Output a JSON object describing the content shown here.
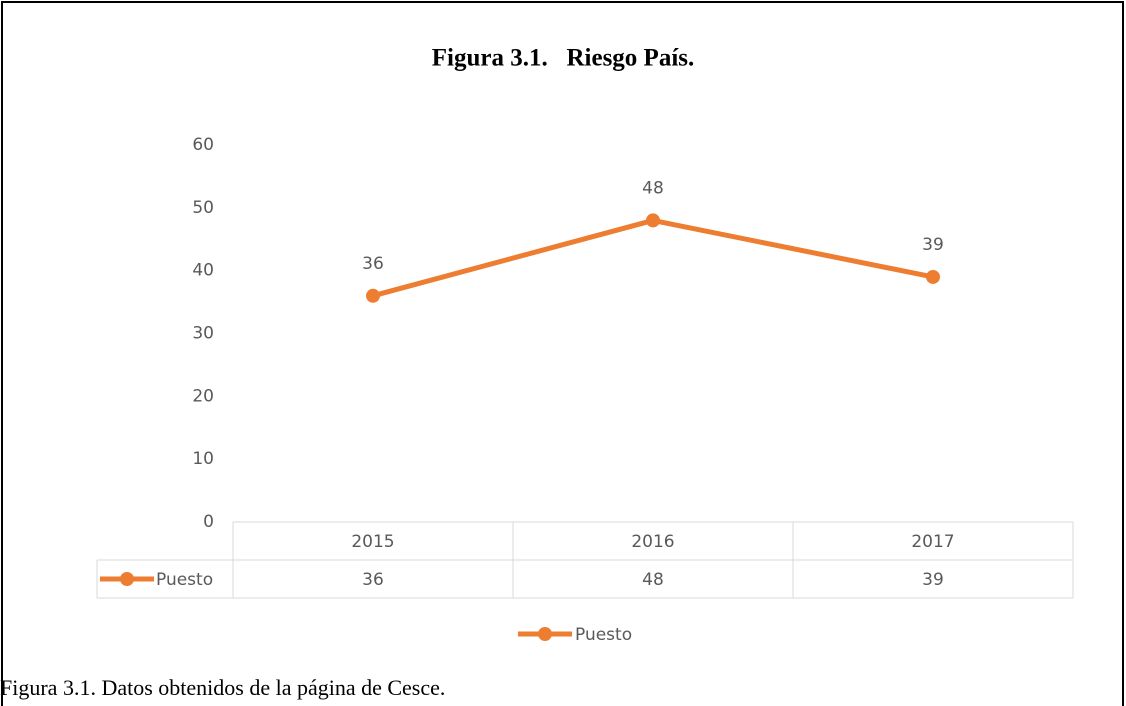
{
  "chart_data": {
    "type": "line",
    "title": "Figura 3.1.   Riesgo País.",
    "categories": [
      "2015",
      "2016",
      "2017"
    ],
    "series": [
      {
        "name": "Puesto",
        "color": "#ed7d31",
        "values": [
          36,
          48,
          39
        ]
      }
    ],
    "ylim": [
      0,
      60
    ],
    "yticks": [
      0,
      10,
      20,
      30,
      40,
      50,
      60
    ],
    "grid": false,
    "data_table": true,
    "legend": "bottom"
  },
  "caption": "Figura 3.1. Datos obtenidos de la página de Cesce."
}
